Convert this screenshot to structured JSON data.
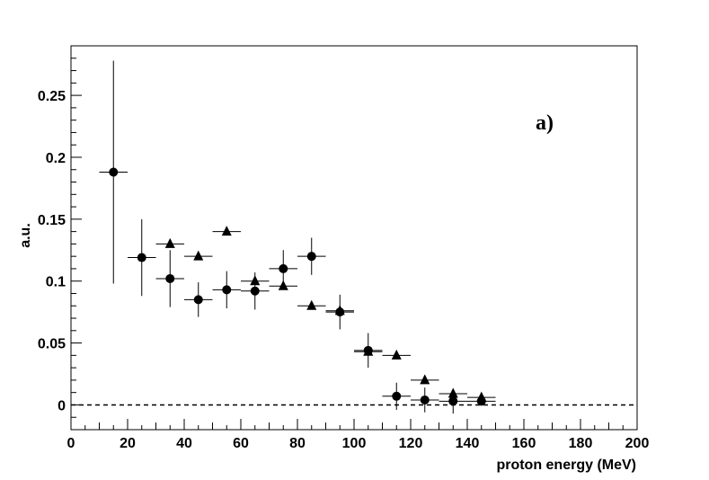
{
  "chart_data": {
    "type": "scatter",
    "title": "",
    "panel_label": "a)",
    "xlabel": "proton energy (MeV)",
    "ylabel": "a.u.",
    "xlim": [
      0,
      200
    ],
    "ylim": [
      -0.02,
      0.29
    ],
    "x_ticks": [
      0,
      20,
      40,
      60,
      80,
      100,
      120,
      140,
      160,
      180,
      200
    ],
    "y_ticks": [
      {
        "value": 0,
        "label": "0"
      },
      {
        "value": 0.05,
        "label": "0.05"
      },
      {
        "value": 0.1,
        "label": "0.1"
      },
      {
        "value": 0.15,
        "label": "0.15"
      },
      {
        "value": 0.2,
        "label": "0.2"
      },
      {
        "value": 0.25,
        "label": "0.25"
      }
    ],
    "reference_line": {
      "y": 0,
      "style": "dashed"
    },
    "grid": false,
    "series": [
      {
        "marker": "triangle",
        "points": [
          {
            "x": 35,
            "y": 0.13,
            "xerr": 5,
            "yerr": 0.0
          },
          {
            "x": 45,
            "y": 0.12,
            "xerr": 5,
            "yerr": 0.0
          },
          {
            "x": 55,
            "y": 0.14,
            "xerr": 5,
            "yerr": 0.0
          },
          {
            "x": 65,
            "y": 0.1,
            "xerr": 5,
            "yerr": 0.0
          },
          {
            "x": 75,
            "y": 0.096,
            "xerr": 5,
            "yerr": 0.0
          },
          {
            "x": 85,
            "y": 0.08,
            "xerr": 5,
            "yerr": 0.0
          },
          {
            "x": 95,
            "y": 0.076,
            "xerr": 5,
            "yerr": 0.0
          },
          {
            "x": 105,
            "y": 0.043,
            "xerr": 5,
            "yerr": 0.0
          },
          {
            "x": 115,
            "y": 0.04,
            "xerr": 5,
            "yerr": 0.0
          },
          {
            "x": 125,
            "y": 0.02,
            "xerr": 5,
            "yerr": 0.0
          },
          {
            "x": 135,
            "y": 0.009,
            "xerr": 5,
            "yerr": 0.0
          },
          {
            "x": 145,
            "y": 0.006,
            "xerr": 5,
            "yerr": 0.0
          }
        ]
      },
      {
        "marker": "circle",
        "points": [
          {
            "x": 15,
            "y": 0.188,
            "xerr": 5,
            "yerr": 0.09
          },
          {
            "x": 25,
            "y": 0.119,
            "xerr": 5,
            "yerr": 0.031
          },
          {
            "x": 35,
            "y": 0.102,
            "xerr": 5,
            "yerr": 0.023
          },
          {
            "x": 45,
            "y": 0.085,
            "xerr": 5,
            "yerr": 0.014
          },
          {
            "x": 55,
            "y": 0.093,
            "xerr": 5,
            "yerr": 0.015
          },
          {
            "x": 65,
            "y": 0.092,
            "xerr": 5,
            "yerr": 0.015
          },
          {
            "x": 75,
            "y": 0.11,
            "xerr": 5,
            "yerr": 0.015
          },
          {
            "x": 85,
            "y": 0.12,
            "xerr": 5,
            "yerr": 0.015
          },
          {
            "x": 95,
            "y": 0.075,
            "xerr": 5,
            "yerr": 0.014
          },
          {
            "x": 105,
            "y": 0.044,
            "xerr": 5,
            "yerr": 0.014
          },
          {
            "x": 115,
            "y": 0.007,
            "xerr": 5,
            "yerr": 0.011
          },
          {
            "x": 125,
            "y": 0.004,
            "xerr": 5,
            "yerr": 0.01
          },
          {
            "x": 135,
            "y": 0.003,
            "xerr": 5,
            "yerr": 0.01
          },
          {
            "x": 145,
            "y": 0.003,
            "xerr": 5,
            "yerr": 0.002
          }
        ]
      }
    ]
  }
}
